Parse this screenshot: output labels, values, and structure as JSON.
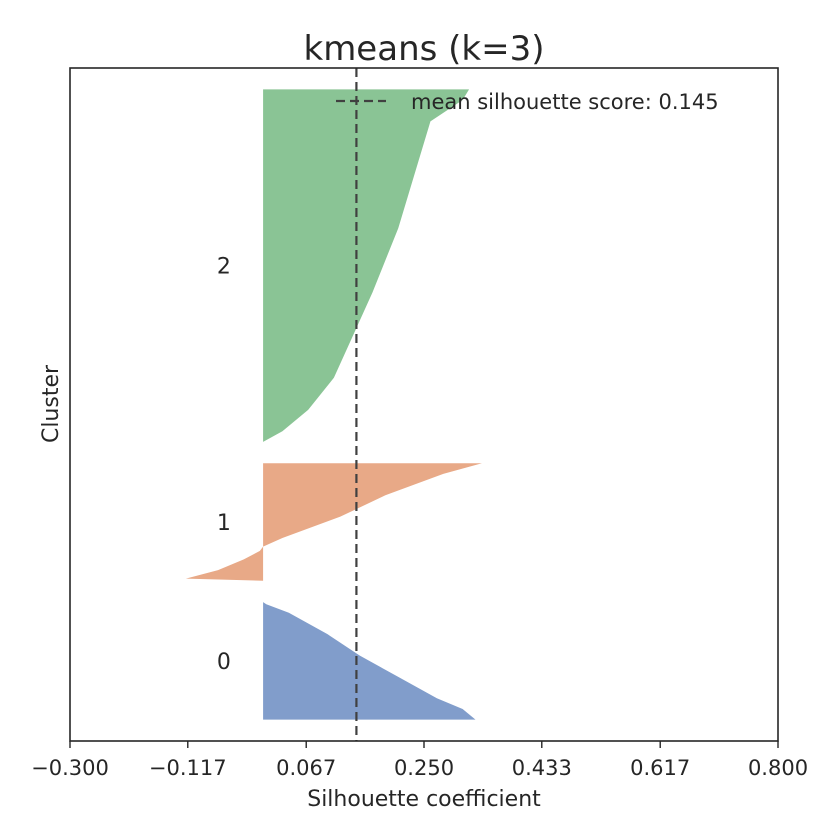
{
  "chart_data": {
    "type": "area",
    "title": "kmeans (k=3)",
    "xlabel": "Silhouette coefficient",
    "ylabel": "Cluster",
    "xlim": [
      -0.3,
      0.8
    ],
    "xticks": [
      "−0.300",
      "−0.117",
      "0.067",
      "0.250",
      "0.433",
      "0.617",
      "0.800"
    ],
    "xtick_values": [
      -0.3,
      -0.117,
      0.067,
      0.25,
      0.433,
      0.617,
      0.8
    ],
    "yticks": "none",
    "grid": false,
    "legend": {
      "placement": "top-right",
      "entries": [
        "mean silhouette score: 0.145"
      ]
    },
    "mean_silhouette_score": 0.145,
    "reference_line": {
      "x": 0.145,
      "style": "dashed",
      "color": "#404040"
    },
    "clusters": [
      {
        "label": "0",
        "color": "#819dcb",
        "samples": 55,
        "silhouette_profile": [
          [
            0,
            0.33
          ],
          [
            5,
            0.31
          ],
          [
            10,
            0.27
          ],
          [
            20,
            0.21
          ],
          [
            30,
            0.15
          ],
          [
            40,
            0.1
          ],
          [
            50,
            0.04
          ],
          [
            54,
            0.005
          ],
          [
            55,
            0
          ]
        ]
      },
      {
        "label": "1",
        "color": "#e8a987",
        "samples": 55,
        "silhouette_profile": [
          [
            0,
            0
          ],
          [
            1,
            -0.12
          ],
          [
            5,
            -0.07
          ],
          [
            10,
            -0.03
          ],
          [
            14,
            -0.005
          ],
          [
            16,
            0
          ],
          [
            20,
            0.03
          ],
          [
            30,
            0.12
          ],
          [
            40,
            0.19
          ],
          [
            50,
            0.28
          ],
          [
            55,
            0.34
          ]
        ]
      },
      {
        "label": "2",
        "color": "#8ac495",
        "samples": 165,
        "silhouette_profile": [
          [
            0,
            0
          ],
          [
            5,
            0.03
          ],
          [
            15,
            0.07
          ],
          [
            30,
            0.11
          ],
          [
            50,
            0.14
          ],
          [
            70,
            0.17
          ],
          [
            100,
            0.21
          ],
          [
            130,
            0.24
          ],
          [
            150,
            0.26
          ],
          [
            160,
            0.31
          ],
          [
            165,
            0.32
          ]
        ]
      }
    ]
  }
}
